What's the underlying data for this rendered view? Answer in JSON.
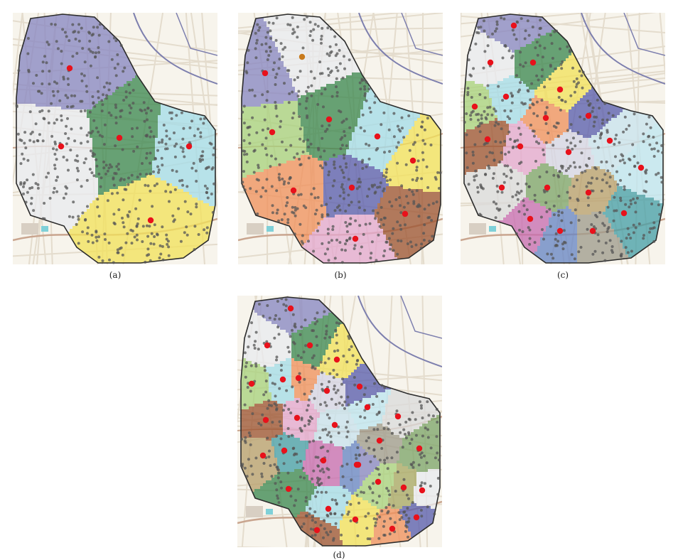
{
  "figure": {
    "panels": [
      {
        "id": "a",
        "caption": "(a)",
        "region_count": 5
      },
      {
        "id": "b",
        "caption": "(b)",
        "region_count": 9
      },
      {
        "id": "c",
        "caption": "(c)",
        "region_count": 20
      },
      {
        "id": "d",
        "caption": "(d)",
        "region_count": 30
      }
    ]
  },
  "colors": {
    "background": "#f7f4ec",
    "road_major": "#c9a58f",
    "road_minor": "#e4dccd",
    "rail": "#7d7fae",
    "boundary": "#2b2b2b",
    "point": "#555555",
    "center": "#e8111b",
    "highlight_center": "#c87a1c",
    "palette": [
      "#8a88c2",
      "#e9ebef",
      "#3f8a52",
      "#a6dde8",
      "#f2e25d",
      "#a9d27e",
      "#f0935e",
      "#5c5fae",
      "#9e5634",
      "#e4a9cf",
      "#d6d6e6",
      "#c9e3ee",
      "#bfe6f0",
      "#dcdcdc",
      "#7fa66b",
      "#b9a06d",
      "#4aa0a8",
      "#c86fb1",
      "#6a87c4",
      "#a09d8e",
      "#aaaa66"
    ]
  }
}
